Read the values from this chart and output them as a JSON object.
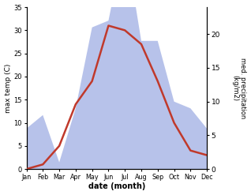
{
  "months": [
    "Jan",
    "Feb",
    "Mar",
    "Apr",
    "May",
    "Jun",
    "Jul",
    "Aug",
    "Sep",
    "Oct",
    "Nov",
    "Dec"
  ],
  "temperature": [
    0,
    1,
    5,
    14,
    19,
    31,
    30,
    27,
    19,
    10,
    4,
    3
  ],
  "precipitation": [
    6,
    8,
    1,
    9,
    21,
    22,
    34,
    19,
    19,
    10,
    9,
    6
  ],
  "temp_color": "#c0392b",
  "precip_color": "#b0bce8",
  "ylabel_left": "max temp (C)",
  "ylabel_right": "med. precipitation\n(kg/m2)",
  "xlabel": "date (month)",
  "ylim_left": [
    0,
    35
  ],
  "ylim_right": [
    0,
    24
  ],
  "background": "#ffffff"
}
